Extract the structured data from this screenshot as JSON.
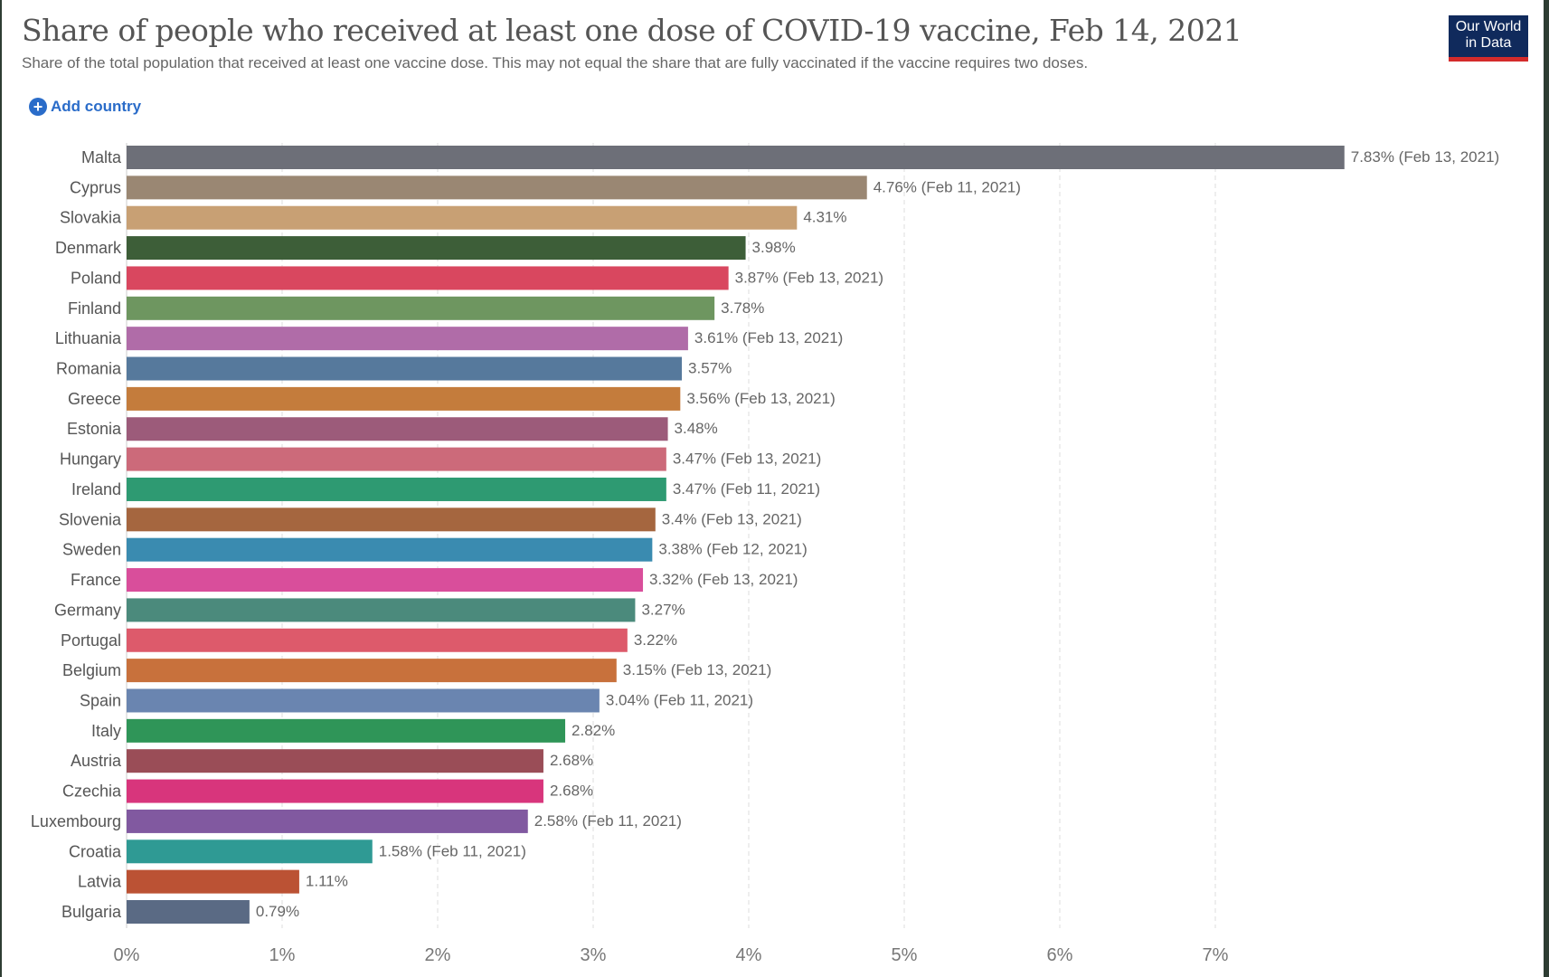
{
  "title": "Share of people who received at least one dose of COVID-19 vaccine, Feb 14, 2021",
  "subtitle": "Share of the total population that received at least one vaccine dose. This may not equal the share that are fully vaccinated if the vaccine requires two doses.",
  "add_country": "Add country",
  "logo": {
    "line1": "Our World",
    "line2": "in Data"
  },
  "chart_data": {
    "type": "bar",
    "orientation": "horizontal",
    "xlim": [
      0,
      7.83
    ],
    "grid": "vertical-dashed",
    "x_ticks": [
      "0%",
      "1%",
      "2%",
      "3%",
      "4%",
      "5%",
      "6%",
      "7%"
    ],
    "categories": [
      "Malta",
      "Cyprus",
      "Slovakia",
      "Denmark",
      "Poland",
      "Finland",
      "Lithuania",
      "Romania",
      "Greece",
      "Estonia",
      "Hungary",
      "Ireland",
      "Slovenia",
      "Sweden",
      "France",
      "Germany",
      "Portugal",
      "Belgium",
      "Spain",
      "Italy",
      "Austria",
      "Czechia",
      "Luxembourg",
      "Croatia",
      "Latvia",
      "Bulgaria"
    ],
    "values": [
      7.83,
      4.76,
      4.31,
      3.98,
      3.87,
      3.78,
      3.61,
      3.57,
      3.56,
      3.48,
      3.47,
      3.47,
      3.4,
      3.38,
      3.32,
      3.27,
      3.22,
      3.15,
      3.04,
      2.82,
      2.68,
      2.68,
      2.58,
      1.58,
      1.11,
      0.79
    ],
    "labels": [
      "7.83% (Feb 13, 2021)",
      "4.76% (Feb 11, 2021)",
      "4.31%",
      "3.98%",
      "3.87% (Feb 13, 2021)",
      "3.78%",
      "3.61% (Feb 13, 2021)",
      "3.57%",
      "3.56% (Feb 13, 2021)",
      "3.48%",
      "3.47% (Feb 13, 2021)",
      "3.47% (Feb 11, 2021)",
      "3.4% (Feb 13, 2021)",
      "3.38% (Feb 12, 2021)",
      "3.32% (Feb 13, 2021)",
      "3.27%",
      "3.22%",
      "3.15% (Feb 13, 2021)",
      "3.04% (Feb 11, 2021)",
      "2.82%",
      "2.68%",
      "2.68%",
      "2.58% (Feb 11, 2021)",
      "1.58% (Feb 11, 2021)",
      "1.11%",
      "0.79%"
    ],
    "colors": [
      "#6d6f78",
      "#9a8773",
      "#c8a074",
      "#3d5e38",
      "#d9475f",
      "#6e9660",
      "#b06ca8",
      "#56799c",
      "#c47c3c",
      "#9c5b7a",
      "#cc6a7a",
      "#2e9a72",
      "#a5663f",
      "#3a8bb0",
      "#d94e9b",
      "#4b8a7c",
      "#dd5a6b",
      "#c8713c",
      "#6a85b0",
      "#2f9558",
      "#9a4d57",
      "#d8357c",
      "#8159a0",
      "#2f9a94",
      "#bb5234",
      "#5a6a84"
    ]
  }
}
